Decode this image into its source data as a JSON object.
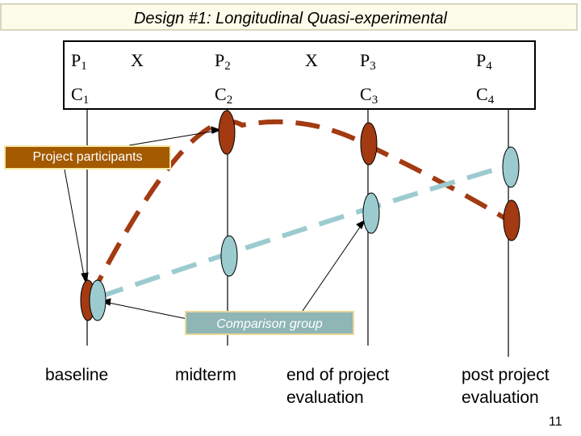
{
  "title": "Design #1: Longitudinal Quasi-experimental",
  "table": {
    "row1": [
      {
        "base": "P",
        "sub": "1"
      },
      {
        "base": "X",
        "sub": ""
      },
      {
        "base": "P",
        "sub": "2"
      },
      {
        "base": "X",
        "sub": ""
      },
      {
        "base": "P",
        "sub": "3"
      },
      {
        "base": "P",
        "sub": "4"
      }
    ],
    "row2": [
      {
        "base": "C",
        "sub": "1"
      },
      {
        "base": "C",
        "sub": "2"
      },
      {
        "base": "C",
        "sub": "3"
      },
      {
        "base": "C",
        "sub": "4"
      }
    ]
  },
  "labels": {
    "participants": "Project participants",
    "comparison": "Comparison group"
  },
  "stages": {
    "baseline": "baseline",
    "midterm": "midterm",
    "end_line1": "end of project",
    "end_line2": "evaluation",
    "post_line1": "post project",
    "post_line2": "evaluation"
  },
  "slide_number": "11",
  "colors": {
    "participants": "#a33a12",
    "comparison": "#9ccbcf",
    "participants_label_bg": "#a35a00",
    "comparison_label_bg": "#8fb5b5"
  }
}
